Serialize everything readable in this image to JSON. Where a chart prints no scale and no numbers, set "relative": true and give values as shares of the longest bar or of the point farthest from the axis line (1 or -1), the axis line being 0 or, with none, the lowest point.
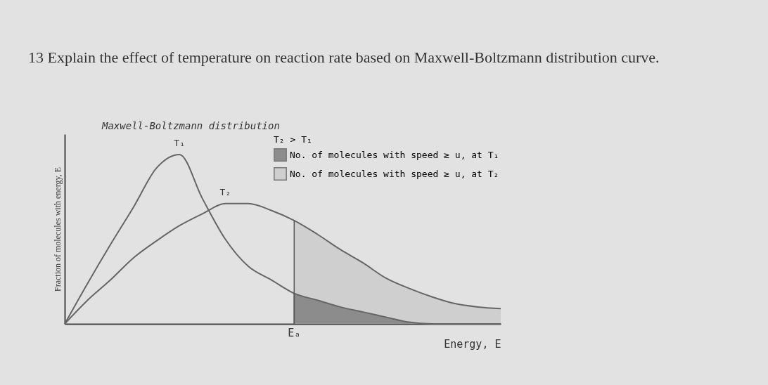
{
  "chart_data": {
    "type": "line",
    "title": "Maxwell-Boltzmann distribution",
    "xlabel": "Energy, E",
    "ylabel": "Fraction of molecules with energy, E",
    "legend_title": "T₂ > T₁",
    "relative": true,
    "legend": "top right",
    "tick_labels": "x",
    "annotations": [
      "13 Explain the effect of temperature on reaction rate based on Maxwell-Boltzmann distribution curve.",
      {
        "text": "Eₐ",
        "y": 0
      }
    ],
    "categories": [
      null,
      null,
      null,
      null,
      null,
      null,
      null,
      null,
      null,
      null,
      null,
      null,
      null,
      null,
      null,
      null,
      null,
      null,
      null,
      null
    ],
    "series": [
      {
        "name": "T₁",
        "color": "#666666",
        "values": [
          0,
          0.24,
          0.47,
          0.69,
          0.92,
          1,
          0.74,
          0.5,
          0.34,
          0.26,
          0.18,
          0.14,
          0.1,
          0.07,
          0.04,
          0.01,
          0,
          0,
          0,
          0
        ]
      },
      {
        "name": "T₂",
        "color": "#666666",
        "values": [
          0,
          0.14,
          0.26,
          0.39,
          0.49,
          0.58,
          0.65,
          0.71,
          0.71,
          0.67,
          0.61,
          0.53,
          0.44,
          0.36,
          0.27,
          0.21,
          0.16,
          0.12,
          0.1,
          0.09
        ]
      },
      {
        "name": "No. of molecules with speed ≥ u, at T₁",
        "type": "area",
        "color": "#8c8c8c",
        "values": [
          null,
          null,
          null,
          null,
          null,
          null,
          null,
          null,
          null,
          null,
          0.18,
          0.14,
          0.1,
          0.07,
          0.04,
          0.01,
          0,
          0,
          0,
          0
        ]
      },
      {
        "name": "No. of molecules with speed ≥ u, at T₂",
        "type": "area",
        "color": "#cfcfcf",
        "values": [
          null,
          null,
          null,
          null,
          null,
          null,
          null,
          null,
          null,
          null,
          0.61,
          0.53,
          0.44,
          0.36,
          0.27,
          0.21,
          0.16,
          0.12,
          0.1,
          0.09
        ]
      }
    ]
  }
}
